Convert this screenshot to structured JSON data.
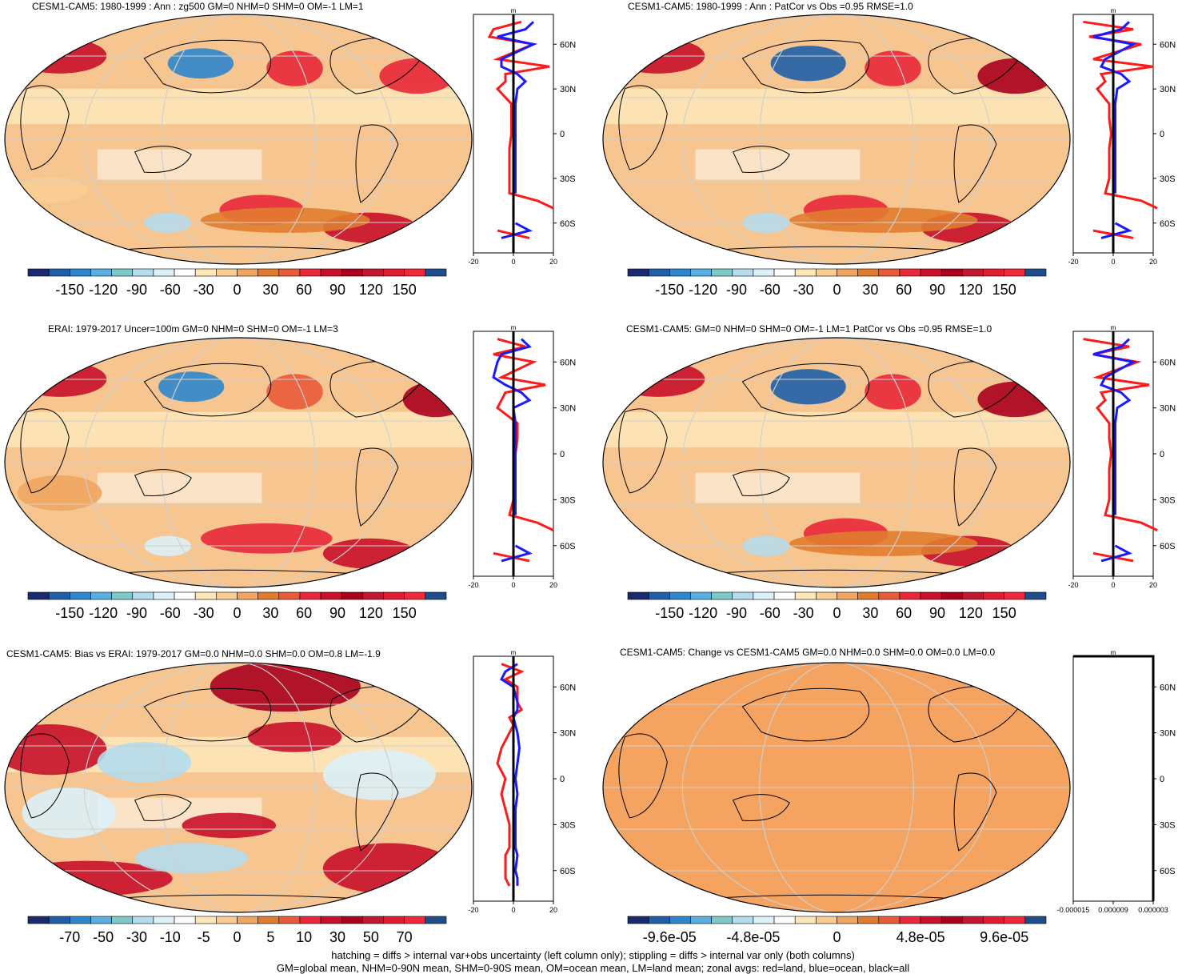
{
  "colors": {
    "land_red": "#ff1a1a",
    "ocean_blue": "#1a1aff",
    "all_black": "#000000",
    "map_bg": "#f4a460",
    "palette": [
      "#1a2a6e",
      "#1f5fa8",
      "#2f86cc",
      "#5aaee0",
      "#7fc8c8",
      "#b4dcec",
      "#dcf0f8",
      "#ffffff",
      "#fde6b8",
      "#f9cd92",
      "#f0a660",
      "#e07c30",
      "#e85a3a",
      "#e8283a",
      "#c8102a",
      "#a8001e",
      "#c01830",
      "#e01c30",
      "#f0283c",
      "#1f4d8a"
    ]
  },
  "panels": [
    {
      "title": "CESM1-CAM5: 1980-1999 : Ann : zg500 GM=0 NHM=0 SHM=0 OM=-1 LM=1",
      "colorbar_labels": [
        "-150",
        "-120",
        "-90",
        "-60",
        "-30",
        "0",
        "30",
        "60",
        "90",
        "120",
        "150"
      ],
      "zonal_xticks": [
        "-20",
        "0",
        "20"
      ],
      "zonal_units": "m",
      "lat_labels": [
        "60N",
        "30N",
        "0",
        "30S",
        "60S"
      ]
    },
    {
      "title": "CESM1-CAM5: 1980-1999 : Ann : PatCor vs Obs =0.95 RMSE=1.0",
      "colorbar_labels": [
        "-150",
        "-120",
        "-90",
        "-60",
        "-30",
        "0",
        "30",
        "60",
        "90",
        "120",
        "150"
      ],
      "zonal_xticks": [
        "-20",
        "0",
        "20"
      ],
      "zonal_units": "m",
      "lat_labels": [
        "60N",
        "30N",
        "0",
        "30S",
        "60S"
      ]
    },
    {
      "title": "ERAI: 1979-2017 Uncer=100m GM=0 NHM=0 SHM=0 OM=-1 LM=3",
      "colorbar_labels": [
        "-150",
        "-120",
        "-90",
        "-60",
        "-30",
        "0",
        "30",
        "60",
        "90",
        "120",
        "150"
      ],
      "zonal_xticks": [
        "-20",
        "0",
        "20"
      ],
      "zonal_units": "m",
      "lat_labels": [
        "60N",
        "30N",
        "0",
        "30S",
        "60S"
      ]
    },
    {
      "title": "CESM1-CAM5: GM=0 NHM=0 SHM=0 OM=-1 LM=1 PatCor vs Obs =0.95 RMSE=1.0",
      "colorbar_labels": [
        "-150",
        "-120",
        "-90",
        "-60",
        "-30",
        "0",
        "30",
        "60",
        "90",
        "120",
        "150"
      ],
      "zonal_xticks": [
        "-20",
        "0",
        "20"
      ],
      "zonal_units": "m",
      "lat_labels": [
        "60N",
        "30N",
        "0",
        "30S",
        "60S"
      ]
    },
    {
      "title": "CESM1-CAM5: Bias vs ERAI: 1979-2017 GM=0.0 NHM=0.0 SHM=0.0 OM=0.8 LM=-1.9",
      "colorbar_labels": [
        "-70",
        "-50",
        "-30",
        "-10",
        "-5",
        "0",
        "5",
        "10",
        "30",
        "50",
        "70"
      ],
      "zonal_xticks": [
        "-20",
        "0",
        "20"
      ],
      "zonal_units": "m",
      "lat_labels": [
        "60N",
        "30N",
        "0",
        "30S",
        "60S"
      ]
    },
    {
      "title": "CESM1-CAM5: Change vs CESM1-CAM5 GM=0.0 NHM=0.0 SHM=0.0 OM=0.0 LM=0.0",
      "colorbar_labels": [
        "-9.6e-05",
        "-4.8e-05",
        "0",
        "4.8e-05",
        "9.6e-05"
      ],
      "zonal_xticks": [
        "-0.000015",
        "0.000009",
        "0.000003"
      ],
      "zonal_units": "m",
      "lat_labels": [
        "60N",
        "30N",
        "0",
        "30S",
        "60S"
      ]
    }
  ],
  "footer": {
    "line1": "hatching = diffs > internal var+obs uncertainty (left column only); stippling = diffs > internal var only (both columns)",
    "line2": "GM=global mean, NHM=0-90N mean, SHM=0-90S mean, OM=ocean mean, LM=land mean; zonal avgs: red=land, blue=ocean, black=all"
  },
  "chart_data": [
    {
      "type": "heatmap",
      "title": "CESM1-CAM5: 1980-1999 : Ann : zg500 GM=0 NHM=0 SHM=0 OM=-1 LM=1",
      "colorbar": [
        -150,
        -120,
        -90,
        -60,
        -30,
        0,
        30,
        60,
        90,
        120,
        150
      ],
      "zonal_mean": {
        "lat": [
          75,
          70,
          65,
          60,
          50,
          45,
          40,
          35,
          30,
          20,
          10,
          0,
          -10,
          -20,
          -30,
          -40,
          -45,
          -50,
          -60,
          -65,
          -70
        ],
        "land": [
          4,
          -10,
          -12,
          10,
          -8,
          18,
          -4,
          -4,
          -8,
          -1,
          -1,
          -1,
          -2,
          -2,
          -2,
          -2,
          12,
          20,
          null,
          -8,
          8
        ],
        "ocean": [
          10,
          6,
          -8,
          10,
          -6,
          -6,
          2,
          6,
          2,
          1,
          1,
          1,
          1,
          1,
          1,
          1,
          null,
          null,
          1,
          8,
          -6
        ],
        "all": [
          0,
          0,
          0,
          0,
          0,
          0,
          0,
          0,
          0,
          0,
          0,
          0,
          0,
          0,
          0,
          0,
          0,
          0,
          0,
          0,
          0
        ],
        "xlim": [
          -20,
          20
        ],
        "units": "m"
      }
    },
    {
      "type": "heatmap",
      "title": "CESM1-CAM5: 1980-1999 : Ann : PatCor vs Obs =0.95 RMSE=1.0",
      "colorbar": [
        -150,
        -120,
        -90,
        -60,
        -30,
        0,
        30,
        60,
        90,
        120,
        150
      ],
      "zonal_mean": {
        "lat": [
          75,
          70,
          65,
          60,
          50,
          45,
          40,
          35,
          30,
          20,
          10,
          0,
          -10,
          -20,
          -30,
          -40,
          -45,
          -50,
          -60,
          -65,
          -70
        ],
        "land": [
          -15,
          10,
          -12,
          14,
          -10,
          20,
          -6,
          -4,
          -8,
          -2,
          -2,
          -1,
          -2,
          -2,
          -2,
          -4,
          14,
          22,
          null,
          -10,
          10
        ],
        "ocean": [
          8,
          4,
          -10,
          10,
          -4,
          -6,
          4,
          8,
          2,
          1,
          1,
          1,
          1,
          1,
          1,
          1,
          null,
          null,
          1,
          8,
          -6
        ],
        "all": [
          0,
          0,
          0,
          0,
          0,
          0,
          0,
          0,
          0,
          0,
          0,
          0,
          0,
          0,
          0,
          0,
          0,
          0,
          0,
          0,
          0
        ],
        "xlim": [
          -20,
          20
        ],
        "units": "m"
      }
    },
    {
      "type": "heatmap",
      "title": "ERAI: 1979-2017 Uncer=100m GM=0 NHM=0 SHM=0 OM=-1 LM=3",
      "colorbar": [
        -150,
        -120,
        -90,
        -60,
        -30,
        0,
        30,
        60,
        90,
        120,
        150
      ],
      "zonal_mean": {
        "lat": [
          75,
          70,
          65,
          60,
          50,
          45,
          40,
          35,
          30,
          20,
          10,
          0,
          -10,
          -20,
          -30,
          -40,
          -45,
          -50,
          -60,
          -65,
          -70
        ],
        "land": [
          -8,
          6,
          -10,
          10,
          -6,
          16,
          -4,
          -6,
          -8,
          2,
          2,
          1,
          1,
          1,
          0,
          -2,
          12,
          20,
          null,
          -10,
          8
        ],
        "ocean": [
          4,
          8,
          -6,
          -8,
          -10,
          -4,
          4,
          8,
          0,
          1,
          1,
          1,
          1,
          1,
          1,
          1,
          null,
          null,
          1,
          8,
          -6
        ],
        "all": [
          0,
          0,
          0,
          0,
          0,
          0,
          0,
          0,
          0,
          0,
          0,
          0,
          0,
          0,
          0,
          0,
          0,
          0,
          0,
          0,
          0
        ],
        "xlim": [
          -20,
          20
        ],
        "units": "m"
      }
    },
    {
      "type": "heatmap",
      "title": "CESM1-CAM5: GM=0 NHM=0 SHM=0 OM=-1 LM=1 PatCor vs Obs =0.95 RMSE=1.0",
      "colorbar": [
        -150,
        -120,
        -90,
        -60,
        -30,
        0,
        30,
        60,
        90,
        120,
        150
      ],
      "zonal_mean": {
        "lat": [
          75,
          70,
          65,
          60,
          50,
          45,
          40,
          35,
          30,
          20,
          10,
          0,
          -10,
          -20,
          -30,
          -40,
          -45,
          -50,
          -60,
          -65,
          -70
        ],
        "land": [
          -15,
          8,
          -10,
          12,
          -8,
          18,
          -6,
          -4,
          -8,
          -2,
          -2,
          -1,
          -2,
          -2,
          -2,
          -4,
          14,
          22,
          null,
          -10,
          10
        ],
        "ocean": [
          8,
          4,
          -10,
          10,
          -4,
          -6,
          4,
          8,
          2,
          1,
          1,
          1,
          1,
          1,
          1,
          1,
          null,
          null,
          1,
          8,
          -6
        ],
        "all": [
          0,
          0,
          0,
          0,
          0,
          0,
          0,
          0,
          0,
          0,
          0,
          0,
          0,
          0,
          0,
          0,
          0,
          0,
          0,
          0,
          0
        ],
        "xlim": [
          -20,
          20
        ],
        "units": "m"
      }
    },
    {
      "type": "heatmap",
      "title": "CESM1-CAM5: Bias vs ERAI: 1979-2017 GM=0.0 NHM=0.0 SHM=0.0 OM=0.8 LM=-1.9",
      "colorbar": [
        -70,
        -50,
        -30,
        -10,
        -5,
        0,
        5,
        10,
        30,
        50,
        70
      ],
      "zonal_mean": {
        "lat": [
          75,
          70,
          65,
          60,
          50,
          45,
          40,
          35,
          30,
          20,
          10,
          0,
          -10,
          -20,
          -30,
          -40,
          -45,
          -50,
          -60,
          -65,
          -70
        ],
        "land": [
          -6,
          4,
          -4,
          2,
          2,
          4,
          -2,
          0,
          -2,
          -6,
          -8,
          -4,
          -6,
          -4,
          -2,
          -2,
          -2,
          -4,
          -4,
          -4,
          -2
        ],
        "ocean": [
          2,
          -4,
          -6,
          0,
          2,
          2,
          0,
          1,
          2,
          3,
          2,
          1,
          2,
          1,
          1,
          1,
          1,
          2,
          1,
          2,
          2
        ],
        "all": [
          0,
          0,
          0,
          0,
          0,
          0,
          0,
          0,
          0,
          0,
          0,
          0,
          0,
          0,
          0,
          0,
          0,
          0,
          0,
          0,
          0
        ],
        "xlim": [
          -20,
          20
        ],
        "units": "m"
      }
    },
    {
      "type": "heatmap",
      "title": "CESM1-CAM5: Change vs CESM1-CAM5 GM=0.0 NHM=0.0 SHM=0.0 OM=0.0 LM=0.0",
      "colorbar": [
        -9.6e-05,
        -4.8e-05,
        0,
        4.8e-05,
        9.6e-05
      ],
      "zonal_mean": {
        "lat": [
          75,
          70,
          65,
          60,
          50,
          45,
          40,
          35,
          30,
          20,
          10,
          0,
          -10,
          -20,
          -30,
          -40,
          -45,
          -50,
          -60,
          -65,
          -70
        ],
        "land": [],
        "ocean": [],
        "all": [
          0,
          0,
          0,
          0,
          0,
          0,
          0,
          0,
          0,
          0,
          0,
          0,
          0,
          0,
          0,
          0,
          0,
          0,
          0,
          0,
          0
        ],
        "xlim": [
          -1.5e-05,
          3e-06
        ],
        "units": "m"
      }
    }
  ]
}
